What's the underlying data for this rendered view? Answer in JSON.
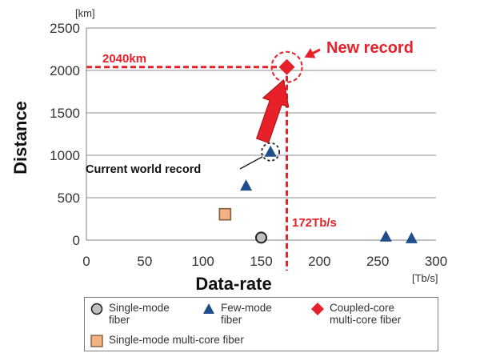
{
  "chart_data": {
    "type": "scatter",
    "xlabel": "Data-rate",
    "ylabel": "Distance",
    "x_unit": "[Tb/s]",
    "y_unit": "[km]",
    "xlim": [
      0,
      300
    ],
    "ylim": [
      0,
      2500
    ],
    "x_ticks": [
      "0",
      "50",
      "100",
      "150",
      "200",
      "250",
      "300"
    ],
    "y_ticks": [
      "0",
      "500",
      "1000",
      "1500",
      "2000",
      "2500"
    ],
    "grid": "horizontal",
    "series": [
      {
        "name": "Single-mode fiber",
        "marker": "circle",
        "color": "#bfbfbf",
        "points": [
          {
            "x": 150,
            "y": 30
          }
        ]
      },
      {
        "name": "Few-mode fiber",
        "marker": "triangle",
        "color": "#1f4e8c",
        "points": [
          {
            "x": 137,
            "y": 640
          },
          {
            "x": 158,
            "y": 1040
          },
          {
            "x": 257,
            "y": 40
          },
          {
            "x": 279,
            "y": 20
          }
        ]
      },
      {
        "name": "Coupled-core multi-core fiber",
        "marker": "diamond",
        "color": "#e8202a",
        "points": [
          {
            "x": 172,
            "y": 2040
          }
        ]
      },
      {
        "name": "Single-mode multi-core fiber",
        "marker": "square",
        "color": "#f4b183",
        "points": [
          {
            "x": 119,
            "y": 305
          }
        ]
      }
    ],
    "annotations": {
      "new_record": "New record",
      "current_record": "Current world record",
      "distance_label": "2040km",
      "rate_label": "172Tb/s"
    },
    "reference_lines": {
      "x": 172,
      "y": 2040
    }
  },
  "legend": {
    "single_mode_line1": "Single-mode",
    "single_mode_line2": "fiber",
    "few_mode_line1": "Few-mode",
    "few_mode_line2": "fiber",
    "coupled_core_line1": "Coupled-core",
    "coupled_core_line2": "multi-core fiber",
    "multi_core": "Single-mode multi-core fiber"
  }
}
